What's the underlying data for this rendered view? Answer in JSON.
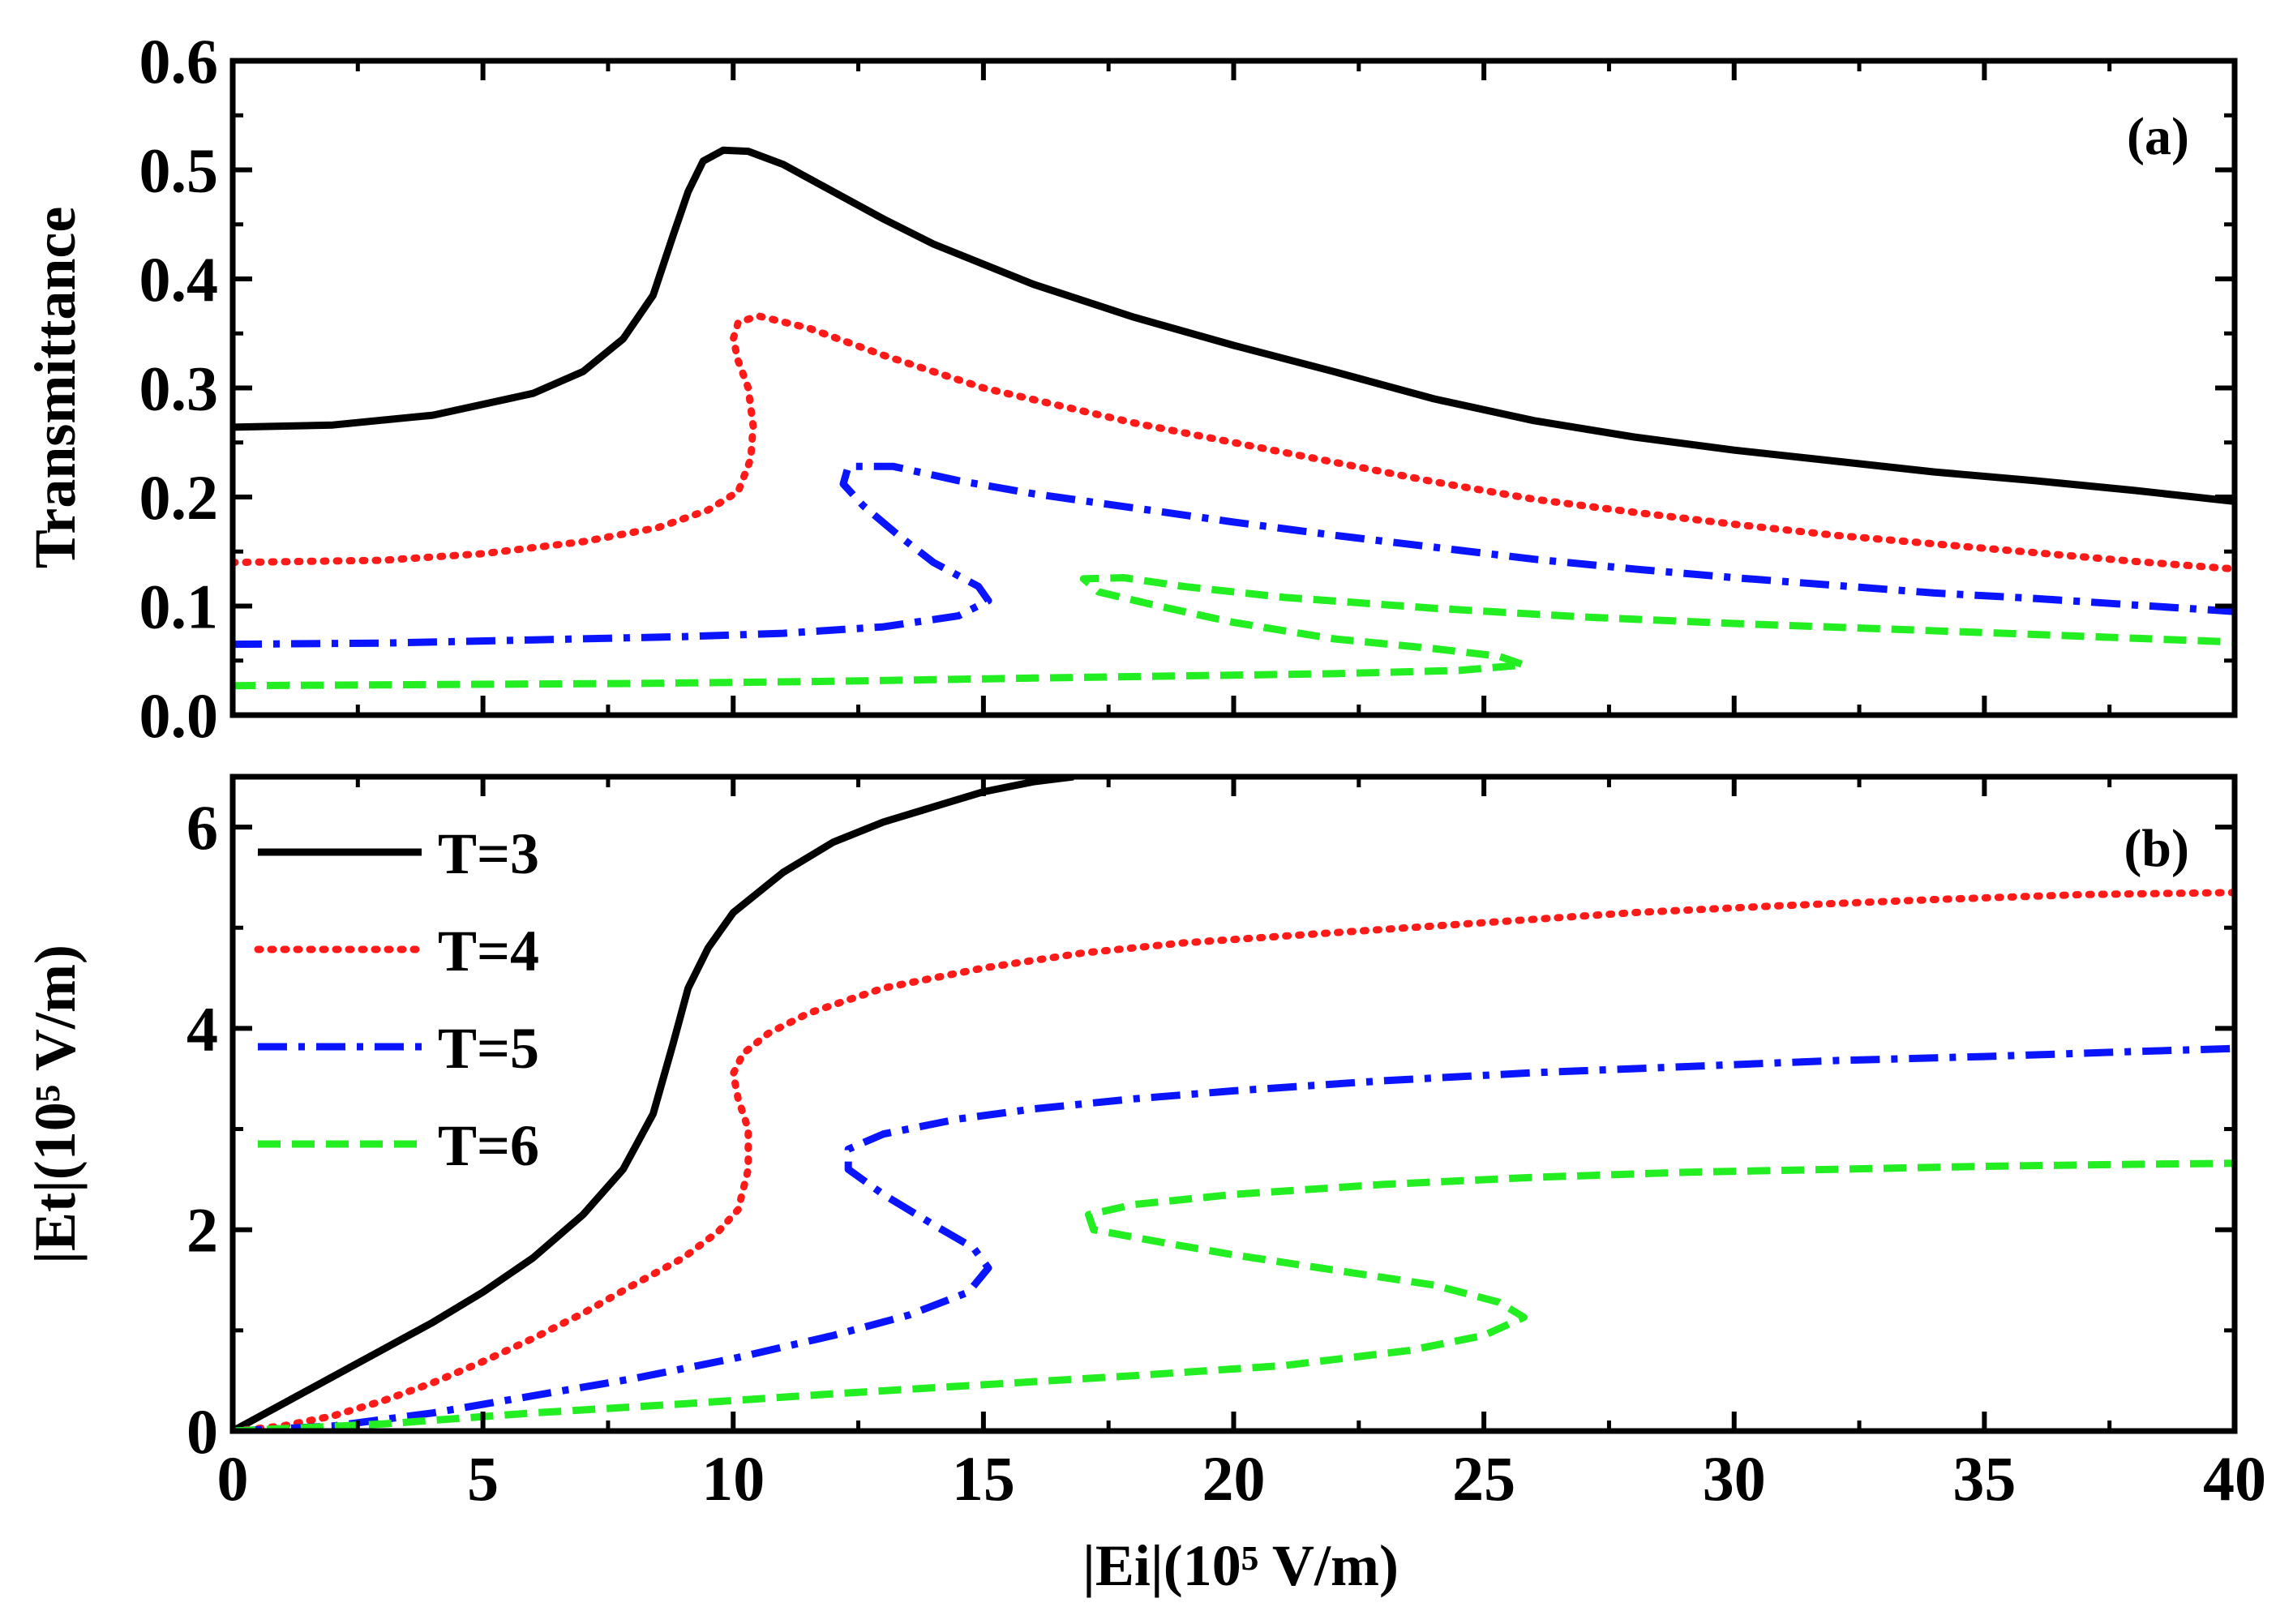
{
  "chart_data": [
    {
      "type": "line",
      "panel": "(a)",
      "xlabel": "",
      "ylabel": "Transmittance",
      "xlim": [
        0,
        40
      ],
      "ylim": [
        0,
        0.6
      ],
      "yticks": [
        0.0,
        0.1,
        0.2,
        0.3,
        0.4,
        0.5,
        0.6
      ],
      "ytick_labels": [
        "0.0",
        "0.1",
        "0.2",
        "0.3",
        "0.4",
        "0.5",
        "0.6"
      ],
      "series": [
        {
          "name": "T=3",
          "color": "#000000",
          "style": "solid",
          "points": [
            [
              0,
              0.264
            ],
            [
              2,
              0.266
            ],
            [
              4,
              0.275
            ],
            [
              6,
              0.295
            ],
            [
              7,
              0.315
            ],
            [
              7.8,
              0.345
            ],
            [
              8.4,
              0.385
            ],
            [
              8.8,
              0.44
            ],
            [
              9.1,
              0.48
            ],
            [
              9.4,
              0.508
            ],
            [
              9.8,
              0.518
            ],
            [
              10.3,
              0.517
            ],
            [
              11,
              0.505
            ],
            [
              12,
              0.48
            ],
            [
              13,
              0.455
            ],
            [
              14,
              0.432
            ],
            [
              16,
              0.395
            ],
            [
              18,
              0.365
            ],
            [
              20,
              0.339
            ],
            [
              22,
              0.315
            ],
            [
              24,
              0.29
            ],
            [
              26,
              0.27
            ],
            [
              28,
              0.255
            ],
            [
              30,
              0.243
            ],
            [
              32,
              0.233
            ],
            [
              34,
              0.223
            ],
            [
              36,
              0.215
            ],
            [
              38,
              0.206
            ],
            [
              40,
              0.196
            ]
          ]
        },
        {
          "name": "T=4",
          "color": "#ff1a1a",
          "style": "dotted",
          "points": [
            [
              0,
              0.14
            ],
            [
              3,
              0.142
            ],
            [
              5,
              0.148
            ],
            [
              7,
              0.159
            ],
            [
              8.5,
              0.172
            ],
            [
              9.5,
              0.188
            ],
            [
              10.1,
              0.205
            ],
            [
              10.35,
              0.235
            ],
            [
              10.4,
              0.265
            ],
            [
              10.3,
              0.3
            ],
            [
              10.1,
              0.325
            ],
            [
              10,
              0.345
            ],
            [
              10.1,
              0.36
            ],
            [
              10.5,
              0.366
            ],
            [
              11.5,
              0.355
            ],
            [
              13,
              0.33
            ],
            [
              15,
              0.3
            ],
            [
              18,
              0.268
            ],
            [
              20,
              0.25
            ],
            [
              22,
              0.232
            ],
            [
              24,
              0.214
            ],
            [
              26,
              0.198
            ],
            [
              28,
              0.186
            ],
            [
              30,
              0.175
            ],
            [
              32,
              0.165
            ],
            [
              34,
              0.157
            ],
            [
              36,
              0.149
            ],
            [
              38,
              0.141
            ],
            [
              40,
              0.134
            ]
          ]
        },
        {
          "name": "T=5",
          "color": "#0a14ff",
          "style": "dashdot",
          "points": [
            [
              0,
              0.065
            ],
            [
              3,
              0.066
            ],
            [
              6,
              0.069
            ],
            [
              9,
              0.072
            ],
            [
              11,
              0.075
            ],
            [
              13,
              0.081
            ],
            [
              14.5,
              0.091
            ],
            [
              15.1,
              0.105
            ],
            [
              14.9,
              0.118
            ],
            [
              14,
              0.14
            ],
            [
              13.3,
              0.165
            ],
            [
              12.6,
              0.192
            ],
            [
              12.2,
              0.212
            ],
            [
              12.3,
              0.228
            ],
            [
              13.2,
              0.228
            ],
            [
              14.5,
              0.215
            ],
            [
              16,
              0.203
            ],
            [
              18,
              0.19
            ],
            [
              20,
              0.177
            ],
            [
              22,
              0.165
            ],
            [
              24,
              0.154
            ],
            [
              26,
              0.143
            ],
            [
              28,
              0.134
            ],
            [
              30,
              0.126
            ],
            [
              32,
              0.119
            ],
            [
              34,
              0.112
            ],
            [
              36,
              0.107
            ],
            [
              38,
              0.101
            ],
            [
              40,
              0.095
            ]
          ]
        },
        {
          "name": "T=6",
          "color": "#22ee22",
          "style": "dashed",
          "points": [
            [
              0,
              0.027
            ],
            [
              4,
              0.028
            ],
            [
              8,
              0.029
            ],
            [
              12,
              0.031
            ],
            [
              16,
              0.034
            ],
            [
              19,
              0.036
            ],
            [
              22,
              0.038
            ],
            [
              24.5,
              0.041
            ],
            [
              25.8,
              0.046
            ],
            [
              25.3,
              0.054
            ],
            [
              24,
              0.061
            ],
            [
              22,
              0.07
            ],
            [
              20,
              0.085
            ],
            [
              18.5,
              0.1
            ],
            [
              17.3,
              0.113
            ],
            [
              17,
              0.125
            ],
            [
              17.8,
              0.126
            ],
            [
              19,
              0.118
            ],
            [
              21,
              0.108
            ],
            [
              24,
              0.098
            ],
            [
              27,
              0.09
            ],
            [
              30,
              0.084
            ],
            [
              33,
              0.079
            ],
            [
              36,
              0.074
            ],
            [
              40,
              0.067
            ]
          ]
        }
      ]
    },
    {
      "type": "line",
      "panel": "(b)",
      "xlabel": "|Ei|(10⁵ V/m)",
      "ylabel": "|Et|(10⁵ V/m)",
      "xlim": [
        0,
        40
      ],
      "ylim": [
        0,
        6.5
      ],
      "xticks": [
        0,
        5,
        10,
        15,
        20,
        25,
        30,
        35,
        40
      ],
      "xtick_labels": [
        "0",
        "5",
        "10",
        "15",
        "20",
        "25",
        "30",
        "35",
        "40"
      ],
      "yticks": [
        0,
        2,
        4,
        6
      ],
      "ytick_labels": [
        "0",
        "2",
        "4",
        "6"
      ],
      "legend": {
        "position": "top-left",
        "entries": [
          "T=3",
          "T=4",
          "T=5",
          "T=6"
        ]
      },
      "series": [
        {
          "name": "T=3",
          "color": "#000000",
          "style": "solid",
          "points": [
            [
              0,
              0
            ],
            [
              1,
              0.27
            ],
            [
              2,
              0.54
            ],
            [
              3,
              0.81
            ],
            [
              4,
              1.08
            ],
            [
              5,
              1.38
            ],
            [
              6,
              1.72
            ],
            [
              7,
              2.15
            ],
            [
              7.8,
              2.6
            ],
            [
              8.4,
              3.15
            ],
            [
              8.8,
              3.85
            ],
            [
              9.1,
              4.4
            ],
            [
              9.5,
              4.8
            ],
            [
              10,
              5.15
            ],
            [
              11,
              5.55
            ],
            [
              12,
              5.85
            ],
            [
              13,
              6.05
            ],
            [
              14,
              6.2
            ],
            [
              15,
              6.35
            ],
            [
              16,
              6.45
            ],
            [
              16.8,
              6.5
            ]
          ]
        },
        {
          "name": "T=4",
          "color": "#ff1a1a",
          "style": "dotted",
          "points": [
            [
              0,
              0
            ],
            [
              1,
              0.05
            ],
            [
              2,
              0.15
            ],
            [
              3,
              0.3
            ],
            [
              4,
              0.48
            ],
            [
              5,
              0.69
            ],
            [
              6,
              0.92
            ],
            [
              7,
              1.17
            ],
            [
              8,
              1.45
            ],
            [
              9,
              1.72
            ],
            [
              9.7,
              1.98
            ],
            [
              10.1,
              2.2
            ],
            [
              10.3,
              2.6
            ],
            [
              10.3,
              3
            ],
            [
              10.1,
              3.3
            ],
            [
              10,
              3.55
            ],
            [
              10.2,
              3.75
            ],
            [
              10.7,
              3.95
            ],
            [
              11.5,
              4.15
            ],
            [
              13,
              4.4
            ],
            [
              15,
              4.6
            ],
            [
              17,
              4.75
            ],
            [
              19,
              4.85
            ],
            [
              22,
              4.95
            ],
            [
              25,
              5.05
            ],
            [
              28,
              5.15
            ],
            [
              31,
              5.22
            ],
            [
              34,
              5.28
            ],
            [
              37,
              5.33
            ],
            [
              40,
              5.35
            ]
          ]
        },
        {
          "name": "T=5",
          "color": "#0a14ff",
          "style": "dashdot",
          "points": [
            [
              0,
              0
            ],
            [
              2,
              0.05
            ],
            [
              4,
              0.18
            ],
            [
              6,
              0.35
            ],
            [
              8,
              0.52
            ],
            [
              10,
              0.72
            ],
            [
              12,
              0.95
            ],
            [
              13.5,
              1.15
            ],
            [
              14.7,
              1.38
            ],
            [
              15.1,
              1.62
            ],
            [
              14.8,
              1.82
            ],
            [
              14,
              2.05
            ],
            [
              13,
              2.35
            ],
            [
              12.3,
              2.6
            ],
            [
              12.3,
              2.8
            ],
            [
              13,
              2.95
            ],
            [
              14.5,
              3.1
            ],
            [
              16,
              3.2
            ],
            [
              18,
              3.3
            ],
            [
              20,
              3.38
            ],
            [
              23,
              3.48
            ],
            [
              26,
              3.56
            ],
            [
              29,
              3.62
            ],
            [
              32,
              3.68
            ],
            [
              35,
              3.72
            ],
            [
              38,
              3.77
            ],
            [
              40,
              3.8
            ]
          ]
        },
        {
          "name": "T=6",
          "color": "#22ee22",
          "style": "dashed",
          "points": [
            [
              0,
              0
            ],
            [
              3,
              0.07
            ],
            [
              6,
              0.18
            ],
            [
              9,
              0.27
            ],
            [
              12,
              0.37
            ],
            [
              15,
              0.46
            ],
            [
              18,
              0.55
            ],
            [
              21,
              0.65
            ],
            [
              23.5,
              0.8
            ],
            [
              25,
              0.95
            ],
            [
              25.8,
              1.13
            ],
            [
              25.3,
              1.28
            ],
            [
              24,
              1.45
            ],
            [
              22,
              1.6
            ],
            [
              20,
              1.75
            ],
            [
              18.5,
              1.88
            ],
            [
              17.2,
              2.0
            ],
            [
              17.1,
              2.15
            ],
            [
              18,
              2.25
            ],
            [
              20,
              2.35
            ],
            [
              23,
              2.45
            ],
            [
              26,
              2.52
            ],
            [
              29,
              2.57
            ],
            [
              32,
              2.6
            ],
            [
              35,
              2.63
            ],
            [
              38,
              2.65
            ],
            [
              40,
              2.66
            ]
          ]
        }
      ]
    }
  ]
}
